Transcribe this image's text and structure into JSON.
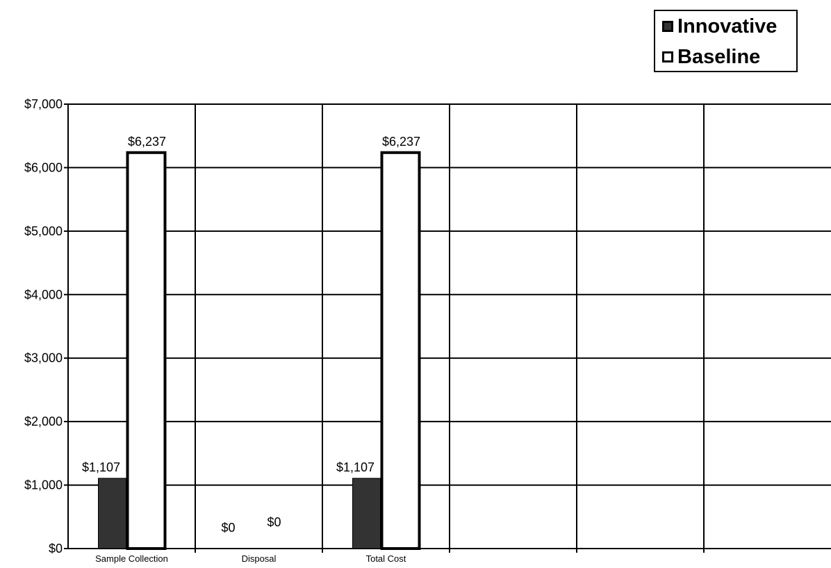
{
  "chart_data": {
    "type": "bar",
    "categories": [
      "Sample Collection",
      "Disposal",
      "Total Cost",
      "",
      "",
      ""
    ],
    "series": [
      {
        "name": "Innovative",
        "values": [
          1107,
          0,
          1107,
          null,
          null,
          null
        ],
        "labels": [
          "$1,107",
          "$0",
          "$1,107",
          "",
          "",
          ""
        ],
        "color": "#333333"
      },
      {
        "name": "Baseline",
        "values": [
          6237,
          0,
          6237,
          null,
          null,
          null
        ],
        "labels": [
          "$6,237",
          "$0",
          "$6,237",
          "",
          "",
          ""
        ],
        "color": "#ffffff"
      }
    ],
    "ylim": [
      0,
      7000
    ],
    "yticks": [
      0,
      1000,
      2000,
      3000,
      4000,
      5000,
      6000,
      7000
    ],
    "ytick_labels": [
      "$0",
      "$1,000",
      "$2,000",
      "$3,000",
      "$4,000",
      "$5,000",
      "$6,000",
      "$7,000"
    ],
    "title": "",
    "xlabel": "",
    "ylabel": "",
    "grid": true,
    "legend_position": "top-right"
  }
}
